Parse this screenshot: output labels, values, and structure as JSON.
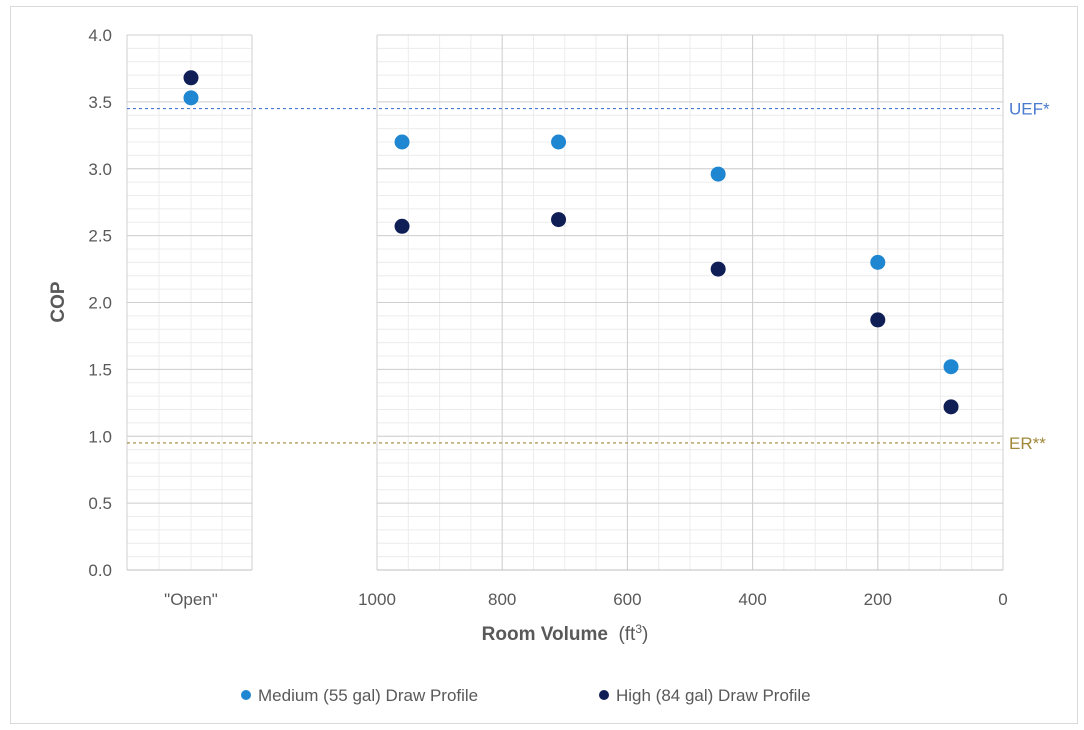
{
  "chart_data": {
    "type": "scatter",
    "ylabel": "COP",
    "xlabel": "Room Volume",
    "xlabel_unit": "(ft3)",
    "ylim": [
      0,
      4
    ],
    "yticks": [
      "4.0",
      "3.5",
      "3.0",
      "2.5",
      "2.0",
      "1.5",
      "1.0",
      "0.5",
      "0.0"
    ],
    "yticks_values": [
      4.0,
      3.5,
      3.0,
      2.5,
      2.0,
      1.5,
      1.0,
      0.5,
      0.0
    ],
    "xlim": [
      1000,
      0
    ],
    "xaxis_reversed": true,
    "xticks": [
      "1000",
      "800",
      "600",
      "400",
      "200",
      "0"
    ],
    "xticks_values": [
      1000,
      800,
      600,
      400,
      200,
      0
    ],
    "open_category_label": "\"Open\"",
    "grid": true,
    "legend_position": "bottom",
    "reference_lines": [
      {
        "label": "UEF*",
        "value": 3.45,
        "color": "#4a7bd0",
        "style": "dashed"
      },
      {
        "label": "ER**",
        "value": 0.95,
        "color": "#a0883a",
        "style": "dashed"
      }
    ],
    "series": [
      {
        "name": "Medium (55 gal) Draw Profile",
        "color": "#1f86d1",
        "open_value": 3.53,
        "points": [
          {
            "x": 960,
            "y": 3.2
          },
          {
            "x": 710,
            "y": 3.2
          },
          {
            "x": 455,
            "y": 2.96
          },
          {
            "x": 200,
            "y": 2.3
          },
          {
            "x": 83,
            "y": 1.52
          }
        ]
      },
      {
        "name": "High (84 gal) Draw Profile",
        "color": "#0f1f56",
        "open_value": 3.68,
        "points": [
          {
            "x": 960,
            "y": 2.57
          },
          {
            "x": 710,
            "y": 2.62
          },
          {
            "x": 455,
            "y": 2.25
          },
          {
            "x": 200,
            "y": 1.87
          },
          {
            "x": 83,
            "y": 1.22
          }
        ]
      }
    ]
  }
}
